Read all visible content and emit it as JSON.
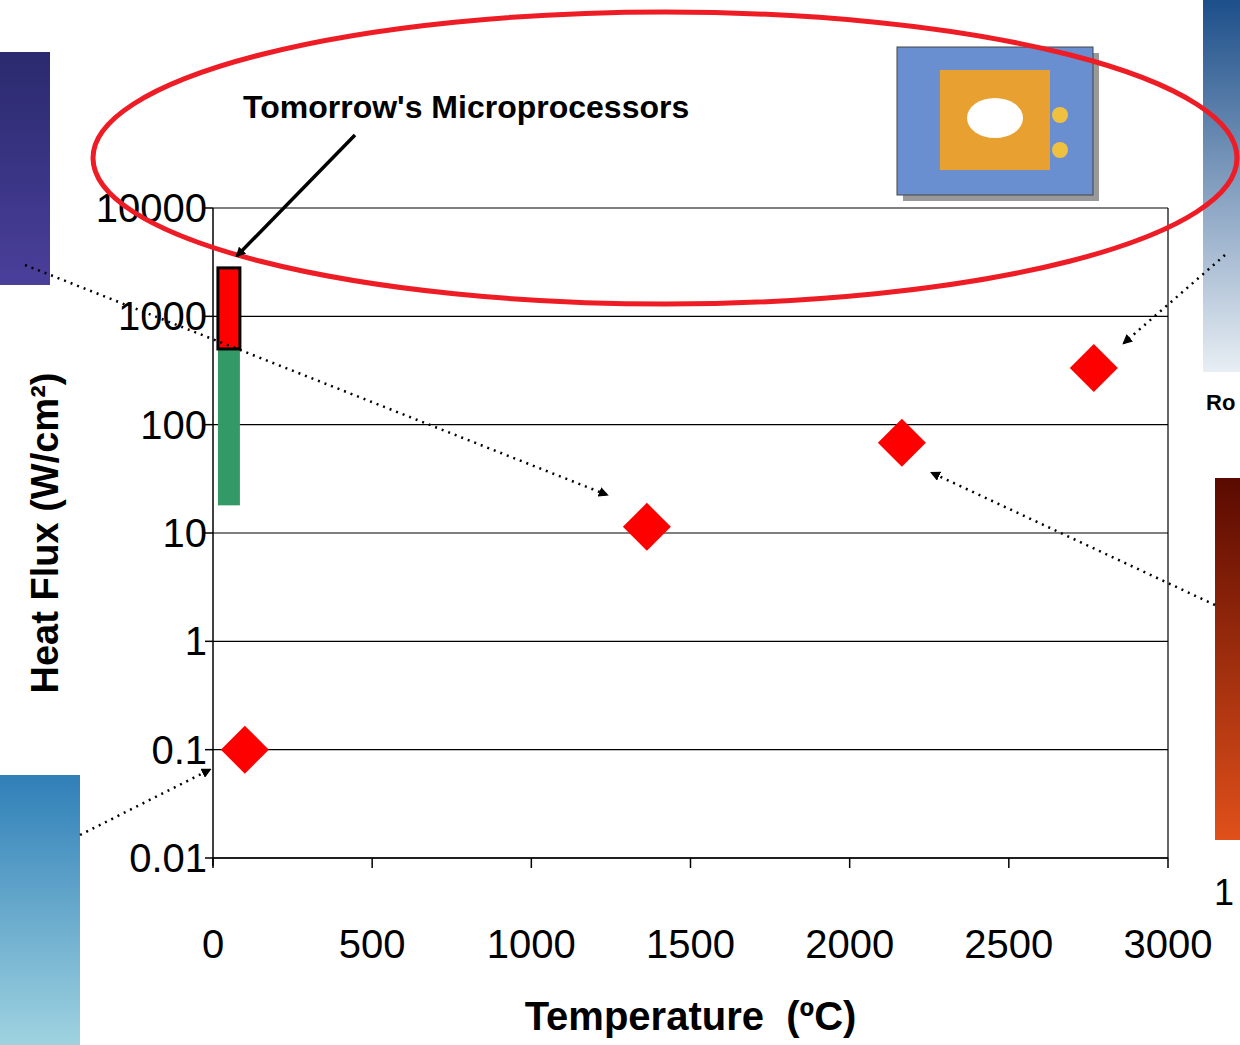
{
  "chart_data": {
    "type": "scatter",
    "x_label": "Temperature  (ºC)",
    "y_label": "Heat Flux (W/cm²)",
    "annotations": [
      "Tomorrow's Microprocessors",
      "Ro",
      "1"
    ],
    "log": "y",
    "grid": true,
    "xlim": [
      0,
      3000
    ],
    "xticks": [
      0,
      500,
      1000,
      1500,
      2000,
      2500,
      3000
    ],
    "ylim": [
      0.01,
      10000
    ],
    "yticks": [
      0.01,
      0.1,
      1,
      10,
      100,
      1000,
      10000
    ],
    "series": [
      {
        "type": "scatter",
        "color": "#ff0000",
        "marker": "diamond",
        "x": [
          100,
          1363,
          2164,
          2767
        ],
        "values": [
          0.1,
          11.4,
          68,
          333
        ]
      },
      {
        "type": "range",
        "colors": [
          "#339966",
          "#ff0000"
        ],
        "x": [
          50,
          50
        ],
        "low": [
          18,
          500
        ],
        "high": [
          500,
          2800
        ]
      }
    ]
  }
}
